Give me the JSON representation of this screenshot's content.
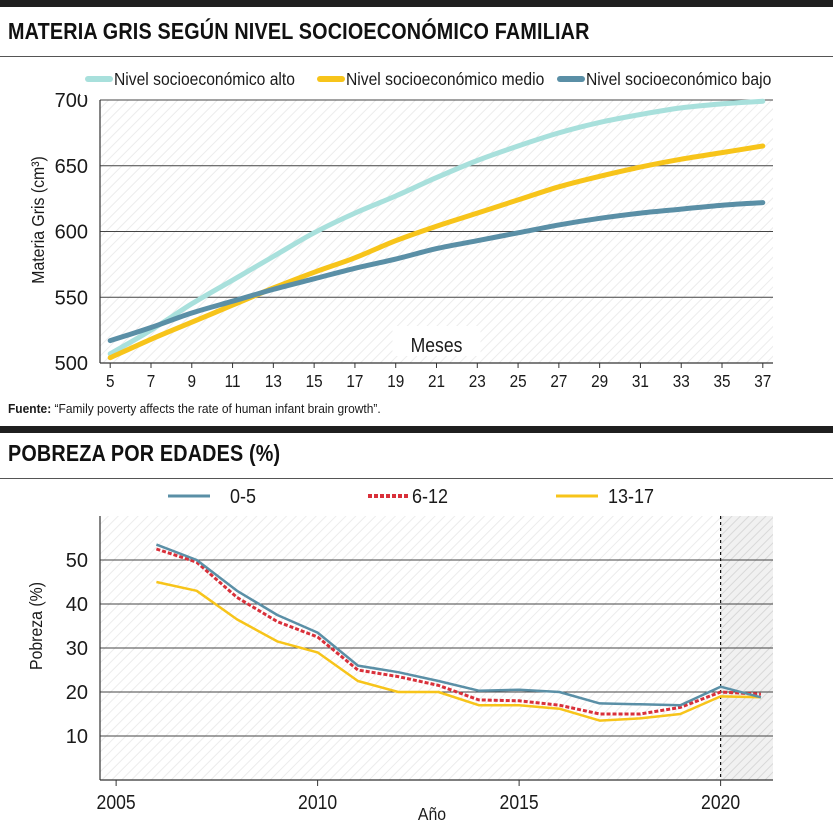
{
  "chart1": {
    "title": "MATERIA GRIS SEGÚN NIVEL SOCIOECONÓMICO FAMILIAR",
    "source_label": "Fuente:",
    "source_text": "“Family poverty affects the rate of human infant brain growth”.",
    "chart_data": {
      "type": "line",
      "title": "MATERIA GRIS SEGÚN NIVEL SOCIOECONÓMICO FAMILIAR",
      "xlabel": "Meses",
      "ylabel": "Materia Gris (cm³)",
      "xlim": [
        4.5,
        37.5
      ],
      "ylim": [
        500,
        700
      ],
      "xticks": [
        5,
        7,
        9,
        11,
        13,
        15,
        17,
        19,
        21,
        23,
        25,
        27,
        29,
        31,
        33,
        35,
        37
      ],
      "yticks": [
        500,
        550,
        600,
        650,
        700
      ],
      "x": [
        5,
        7,
        9,
        11,
        13,
        15,
        17,
        19,
        21,
        23,
        25,
        27,
        29,
        31,
        33,
        35,
        37
      ],
      "series": [
        {
          "name": "Nivel socioeconómico alto",
          "color": "#a8e0dc",
          "values": [
            507,
            525,
            545,
            563,
            581,
            599,
            614,
            627,
            641,
            654,
            665,
            675,
            683,
            689,
            694,
            697,
            699
          ]
        },
        {
          "name": "Nivel socioeconómico medio",
          "color": "#f7c41a",
          "values": [
            504,
            518,
            531,
            544,
            557,
            569,
            580,
            593,
            604,
            614,
            624,
            634,
            642,
            649,
            655,
            660,
            665
          ]
        },
        {
          "name": "Nivel socioeconómico bajo",
          "color": "#5a8fa6",
          "values": [
            517,
            527,
            538,
            547,
            556,
            564,
            572,
            579,
            587,
            593,
            599,
            605,
            610,
            614,
            617,
            620,
            622
          ]
        }
      ]
    }
  },
  "chart2": {
    "title": "POBREZA POR EDADES (%)",
    "chart_data": {
      "type": "line",
      "title": "POBREZA POR EDADES (%)",
      "xlabel": "Año",
      "ylabel": "Pobreza (%)",
      "xlim": [
        2005,
        2021.3
      ],
      "ylim": [
        0,
        60
      ],
      "xticks": [
        2005,
        2010,
        2015,
        2020
      ],
      "yticks": [
        10,
        20,
        30,
        40,
        50
      ],
      "marker_line_x": 2020,
      "x": [
        2006,
        2007,
        2008,
        2009,
        2010,
        2011,
        2012,
        2013,
        2014,
        2015,
        2016,
        2017,
        2018,
        2019,
        2020,
        2021
      ],
      "series": [
        {
          "name": "0-5",
          "color": "#5a8fa6",
          "style": "solid",
          "values": [
            53.5,
            50,
            43,
            37.5,
            33.5,
            26,
            24.5,
            22.5,
            20.3,
            20.5,
            20,
            17.4,
            17.2,
            17,
            21.2,
            18.8
          ]
        },
        {
          "name": "6-12",
          "color": "#d9303a",
          "style": "dashed",
          "values": [
            52.5,
            49.5,
            41.5,
            36,
            32.5,
            25,
            23.5,
            21.5,
            18.2,
            18,
            17,
            15,
            15,
            16.5,
            20,
            19.5
          ]
        },
        {
          "name": "13-17",
          "color": "#f7c41a",
          "style": "solid",
          "values": [
            45,
            43,
            36.5,
            31.5,
            29,
            22.5,
            20,
            20,
            17,
            17,
            16.2,
            13.5,
            14,
            15,
            19,
            18.8
          ]
        }
      ]
    }
  }
}
